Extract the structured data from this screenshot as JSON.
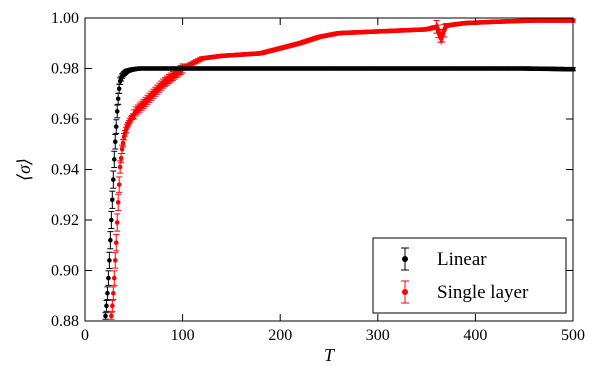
{
  "chart_data": {
    "type": "scatter",
    "title": "",
    "xlabel": "T",
    "ylabel": "⟨σ⟩",
    "xlim": [
      0,
      500
    ],
    "ylim": [
      0.88,
      1.0
    ],
    "x_ticks": [
      0,
      100,
      200,
      300,
      400,
      500
    ],
    "y_ticks": [
      0.88,
      0.9,
      0.92,
      0.94,
      0.96,
      0.98,
      1.0
    ],
    "x_tick_labels": [
      "0",
      "100",
      "200",
      "300",
      "400",
      "500"
    ],
    "y_tick_labels": [
      "0.88",
      "0.90",
      "0.92",
      "0.94",
      "0.96",
      "0.98",
      "1.00"
    ],
    "grid": false,
    "legend_position": "bottom-right",
    "series": [
      {
        "name": "Linear",
        "color": "#000000",
        "error_bars": true,
        "points": [
          [
            21,
            0.882
          ],
          [
            22,
            0.886
          ],
          [
            23,
            0.891
          ],
          [
            24,
            0.897
          ],
          [
            25,
            0.904
          ],
          [
            26,
            0.912
          ],
          [
            27,
            0.92
          ],
          [
            28,
            0.928
          ],
          [
            29,
            0.936
          ],
          [
            30,
            0.944
          ],
          [
            31,
            0.951
          ],
          [
            32,
            0.957
          ],
          [
            33,
            0.963
          ],
          [
            34,
            0.968
          ],
          [
            35,
            0.972
          ],
          [
            36,
            0.975
          ],
          [
            38,
            0.977
          ],
          [
            40,
            0.978
          ],
          [
            43,
            0.979
          ],
          [
            47,
            0.9795
          ],
          [
            55,
            0.98
          ],
          [
            70,
            0.98
          ],
          [
            100,
            0.98
          ],
          [
            150,
            0.98
          ],
          [
            200,
            0.98
          ],
          [
            250,
            0.98
          ],
          [
            300,
            0.98
          ],
          [
            350,
            0.98
          ],
          [
            400,
            0.98
          ],
          [
            450,
            0.98
          ],
          [
            500,
            0.9797
          ]
        ]
      },
      {
        "name": "Single layer",
        "color": "#ff0000",
        "error_bars": true,
        "points": [
          [
            27,
            0.882
          ],
          [
            28,
            0.886
          ],
          [
            29,
            0.891
          ],
          [
            30,
            0.897
          ],
          [
            31,
            0.904
          ],
          [
            32,
            0.911
          ],
          [
            33,
            0.919
          ],
          [
            34,
            0.927
          ],
          [
            35,
            0.934
          ],
          [
            36,
            0.941
          ],
          [
            38,
            0.948
          ],
          [
            40,
            0.953
          ],
          [
            43,
            0.957
          ],
          [
            47,
            0.96
          ],
          [
            52,
            0.963
          ],
          [
            60,
            0.966
          ],
          [
            70,
            0.97
          ],
          [
            80,
            0.974
          ],
          [
            90,
            0.977
          ],
          [
            100,
            0.98
          ],
          [
            110,
            0.982
          ],
          [
            120,
            0.984
          ],
          [
            140,
            0.985
          ],
          [
            160,
            0.9855
          ],
          [
            180,
            0.986
          ],
          [
            200,
            0.988
          ],
          [
            220,
            0.99
          ],
          [
            240,
            0.9925
          ],
          [
            260,
            0.994
          ],
          [
            290,
            0.9945
          ],
          [
            320,
            0.995
          ],
          [
            350,
            0.9955
          ],
          [
            360,
            0.9965
          ],
          [
            365,
            0.992
          ],
          [
            370,
            0.997
          ],
          [
            390,
            0.998
          ],
          [
            420,
            0.9985
          ],
          [
            460,
            0.999
          ],
          [
            500,
            0.999
          ]
        ]
      }
    ]
  }
}
